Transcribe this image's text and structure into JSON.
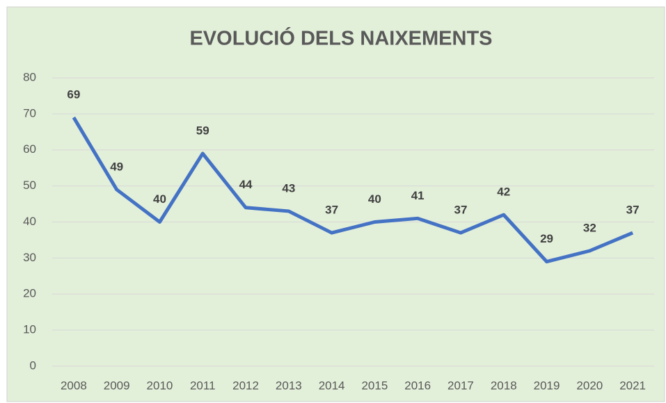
{
  "chart_data": {
    "type": "line",
    "title": "EVOLUCIÓ DELS NAIXEMENTS",
    "categories": [
      "2008",
      "2009",
      "2010",
      "2011",
      "2012",
      "2013",
      "2014",
      "2015",
      "2016",
      "2017",
      "2018",
      "2019",
      "2020",
      "2021"
    ],
    "values": [
      69,
      49,
      40,
      59,
      44,
      43,
      37,
      40,
      41,
      37,
      42,
      29,
      32,
      37
    ],
    "color": "#4472c4",
    "ylim": [
      0,
      80
    ],
    "yticks": [
      0,
      10,
      20,
      30,
      40,
      50,
      60,
      70,
      80
    ],
    "grid": true
  }
}
